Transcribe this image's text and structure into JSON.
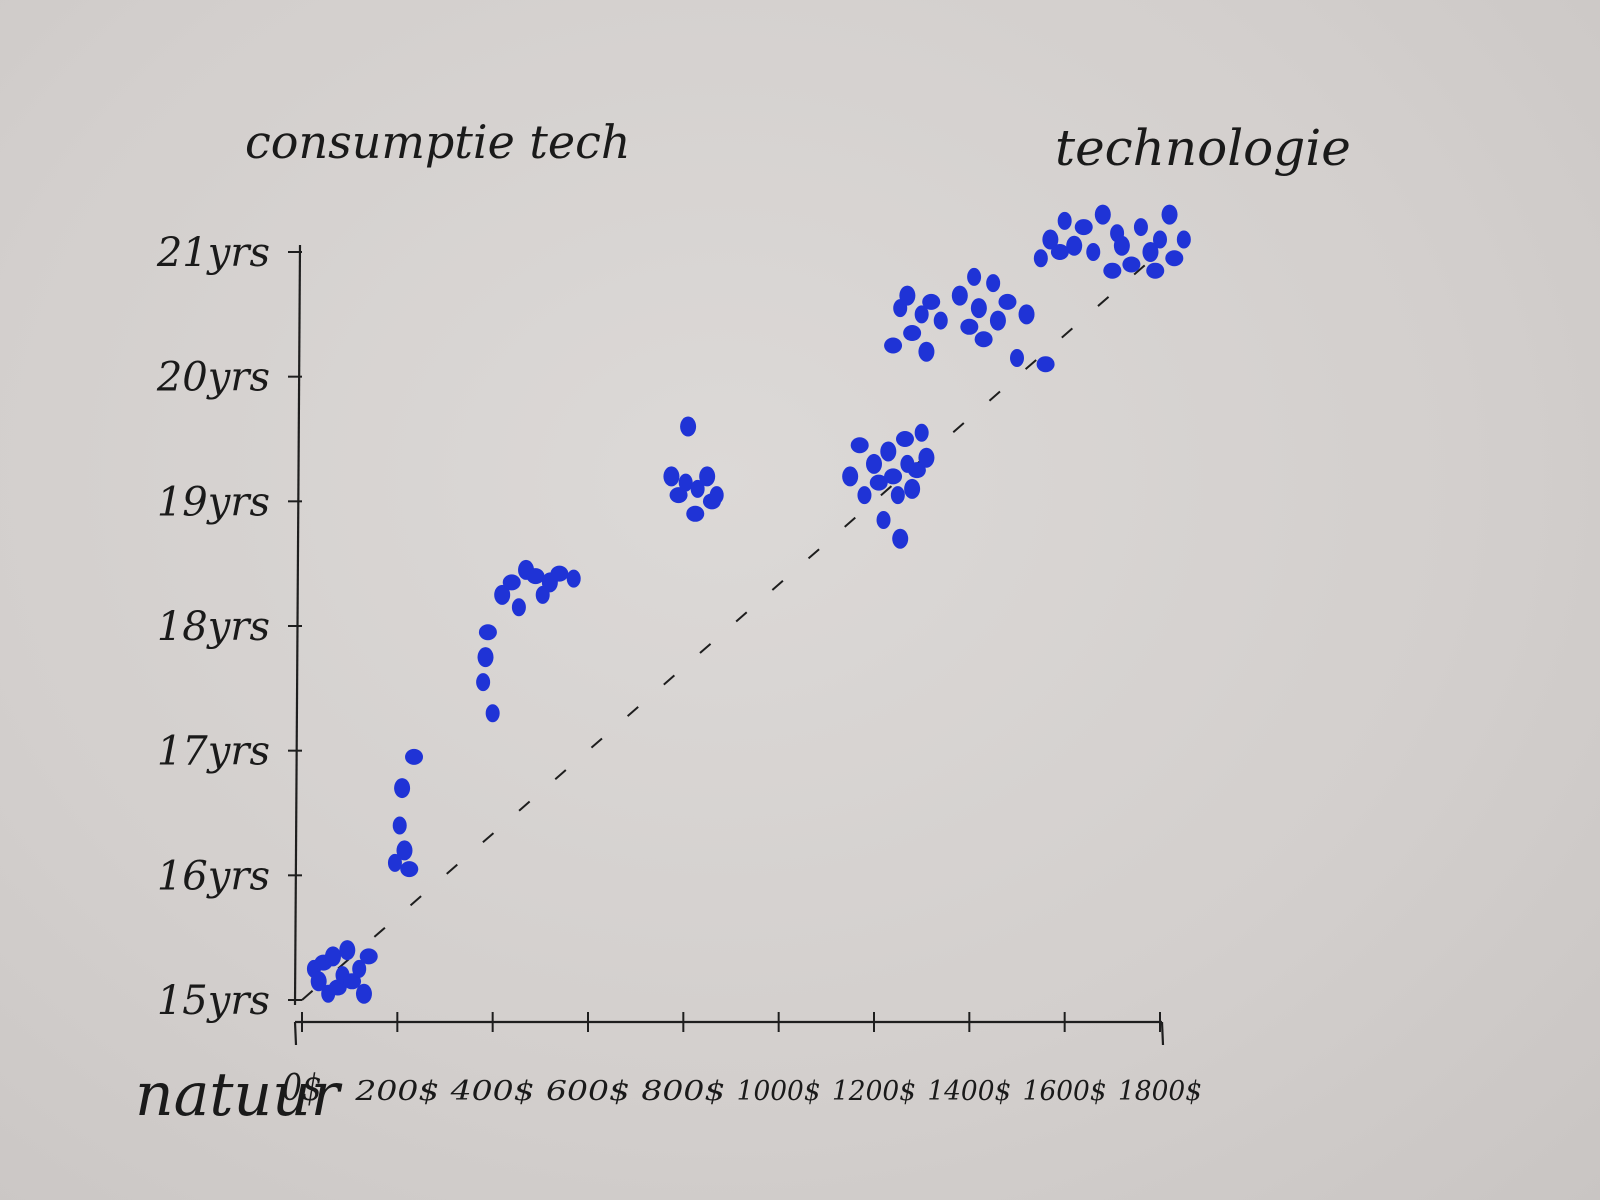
{
  "chart_data": {
    "type": "scatter",
    "title": "consumptie tech",
    "corner_label_left": "natuur",
    "corner_label_right": "technologie",
    "colors": {
      "points": "#1f33d6",
      "ink": "#1e1e1e"
    },
    "x_tick_labels": [
      "0$",
      "200$",
      "400$",
      "600$",
      "800$",
      "1000$",
      "1200$",
      "1400$",
      "1600$",
      "1800$"
    ],
    "x_ticks": [
      0,
      200,
      400,
      600,
      800,
      1000,
      1200,
      1400,
      1600,
      1800
    ],
    "y_tick_labels": [
      "15yrs",
      "16yrs",
      "17yrs",
      "18yrs",
      "19yrs",
      "20yrs",
      "21yrs"
    ],
    "y_ticks": [
      15,
      16,
      17,
      18,
      19,
      20,
      21
    ],
    "xlim": [
      0,
      1800
    ],
    "ylim": [
      15,
      21
    ],
    "grid": false,
    "trendline": [
      [
        0,
        15.0
      ],
      [
        1800,
        21.0
      ]
    ],
    "points": [
      [
        25,
        15.25
      ],
      [
        35,
        15.15
      ],
      [
        45,
        15.3
      ],
      [
        55,
        15.05
      ],
      [
        65,
        15.35
      ],
      [
        75,
        15.1
      ],
      [
        85,
        15.2
      ],
      [
        95,
        15.4
      ],
      [
        105,
        15.15
      ],
      [
        120,
        15.25
      ],
      [
        130,
        15.05
      ],
      [
        140,
        15.35
      ],
      [
        195,
        16.1
      ],
      [
        215,
        16.2
      ],
      [
        225,
        16.05
      ],
      [
        205,
        16.4
      ],
      [
        210,
        16.7
      ],
      [
        235,
        16.95
      ],
      [
        380,
        17.55
      ],
      [
        385,
        17.75
      ],
      [
        390,
        17.95
      ],
      [
        400,
        17.3
      ],
      [
        420,
        18.25
      ],
      [
        440,
        18.35
      ],
      [
        455,
        18.15
      ],
      [
        470,
        18.45
      ],
      [
        490,
        18.4
      ],
      [
        505,
        18.25
      ],
      [
        520,
        18.35
      ],
      [
        540,
        18.42
      ],
      [
        570,
        18.38
      ],
      [
        775,
        19.2
      ],
      [
        790,
        19.05
      ],
      [
        805,
        19.15
      ],
      [
        810,
        19.6
      ],
      [
        825,
        18.9
      ],
      [
        830,
        19.1
      ],
      [
        850,
        19.2
      ],
      [
        860,
        19.0
      ],
      [
        870,
        19.05
      ],
      [
        1150,
        19.2
      ],
      [
        1170,
        19.45
      ],
      [
        1180,
        19.05
      ],
      [
        1200,
        19.3
      ],
      [
        1210,
        19.15
      ],
      [
        1220,
        18.85
      ],
      [
        1230,
        19.4
      ],
      [
        1240,
        19.2
      ],
      [
        1250,
        19.05
      ],
      [
        1255,
        18.7
      ],
      [
        1265,
        19.5
      ],
      [
        1270,
        19.3
      ],
      [
        1280,
        19.1
      ],
      [
        1290,
        19.25
      ],
      [
        1300,
        19.55
      ],
      [
        1310,
        19.35
      ],
      [
        1240,
        20.25
      ],
      [
        1255,
        20.55
      ],
      [
        1270,
        20.65
      ],
      [
        1280,
        20.35
      ],
      [
        1300,
        20.5
      ],
      [
        1310,
        20.2
      ],
      [
        1320,
        20.6
      ],
      [
        1340,
        20.45
      ],
      [
        1380,
        20.65
      ],
      [
        1400,
        20.4
      ],
      [
        1410,
        20.8
      ],
      [
        1420,
        20.55
      ],
      [
        1430,
        20.3
      ],
      [
        1450,
        20.75
      ],
      [
        1460,
        20.45
      ],
      [
        1480,
        20.6
      ],
      [
        1500,
        20.15
      ],
      [
        1520,
        20.5
      ],
      [
        1560,
        20.1
      ],
      [
        1550,
        20.95
      ],
      [
        1570,
        21.1
      ],
      [
        1590,
        21.0
      ],
      [
        1600,
        21.25
      ],
      [
        1620,
        21.05
      ],
      [
        1640,
        21.2
      ],
      [
        1660,
        21.0
      ],
      [
        1680,
        21.3
      ],
      [
        1700,
        20.85
      ],
      [
        1710,
        21.15
      ],
      [
        1720,
        21.05
      ],
      [
        1740,
        20.9
      ],
      [
        1760,
        21.2
      ],
      [
        1780,
        21.0
      ],
      [
        1790,
        20.85
      ],
      [
        1800,
        21.1
      ],
      [
        1820,
        21.3
      ],
      [
        1830,
        20.95
      ],
      [
        1850,
        21.1
      ]
    ]
  }
}
